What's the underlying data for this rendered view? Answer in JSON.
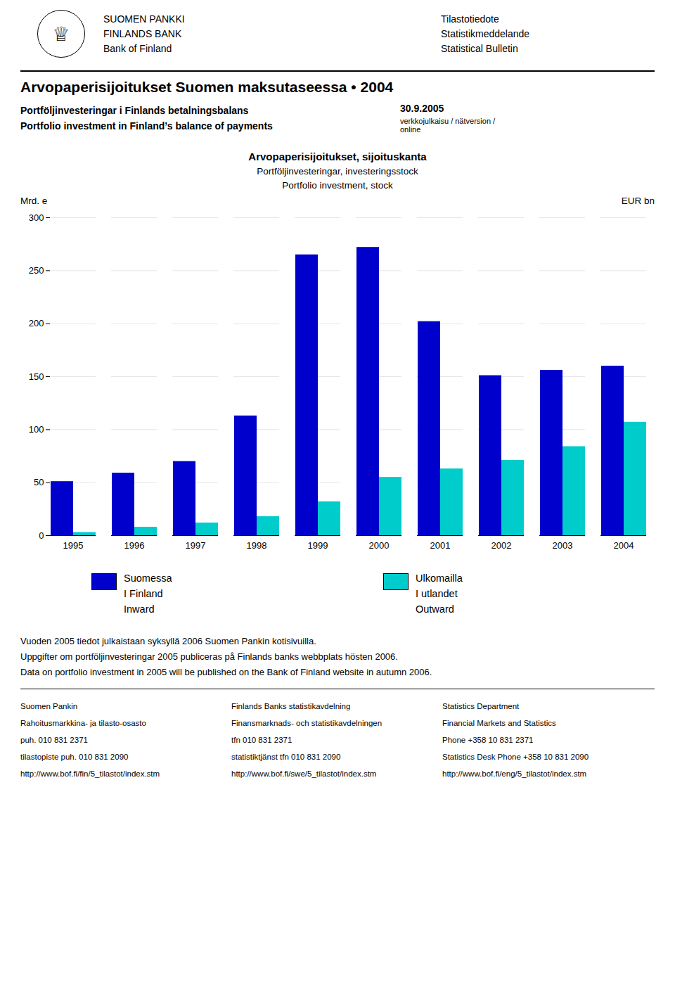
{
  "chart_data": {
    "type": "bar",
    "header": {
      "left": [
        "SUOMEN PANKKI",
        "FINLANDS BANK",
        "Bank of Finland"
      ],
      "right": [
        "Tilastotiedote",
        "Statistikmeddelande",
        "Statistical Bulletin"
      ]
    },
    "annotations": [
      "♕"
    ],
    "title": "Arvopaperisijoitukset Suomen maksutaseessa • 2004",
    "subtitle": [
      "Portföljinvesteringar i Finlands betalningsbalans",
      "Portfolio investment  in Finland’s balance of payments"
    ],
    "date_label": "30.9.2005",
    "date_sublabel": "verkkojulkaisu / nätversion /\nonline",
    "chart_title": [
      "Arvopaperisijoitukset, sijoituskanta",
      "Portföljinvesteringar, investeringsstock",
      "Portfolio investment, stock"
    ],
    "ylabel": "Mrd. e",
    "ylabel_right": "EUR bn",
    "categories": [
      1995,
      1996,
      1997,
      1998,
      1999,
      2000,
      2001,
      2002,
      2003,
      2004
    ],
    "series": [
      {
        "name": "Suomessa\nI Finland\nInward",
        "color": "#0000CC",
        "values": [
          51,
          59,
          70,
          113,
          265,
          272,
          202,
          151,
          156,
          160
        ]
      },
      {
        "name": "Ulkomailla\nI utlandet\nOutward",
        "color": "#00CCCC",
        "values": [
          3,
          8,
          12,
          18,
          32,
          55,
          63,
          71,
          84,
          107
        ]
      }
    ],
    "ylim": [
      0,
      300
    ],
    "yticks": [
      0,
      50,
      100,
      150,
      200,
      250,
      300
    ],
    "grid": true,
    "footer": [
      "Vuoden 2005 tiedot julkaistaan syksyllä 2006 Suomen Pankin kotisivuilla.",
      "Uppgifter om portföljinvesteringar 2005 publiceras på Finlands banks webbplats hösten 2006.",
      "Data on portfolio investment in 2005 will be published on the Bank of Finland website in autumn 2006."
    ],
    "contacts": [
      [
        "Suomen Pankin",
        "Rahoitusmarkkina- ja tilasto-osasto",
        "puh. 010 831 2371",
        "tilastopiste puh. 010 831 2090",
        "http://www.bof.fi/fin/5_tilastot/index.stm"
      ],
      [
        "Finlands Banks statistikavdelning",
        "Finansmarknads- och statistikavdelningen",
        "tfn 010 831 2371",
        "statistiktjänst tfn 010 831 2090",
        "http://www.bof.fi/swe/5_tilastot/index.stm"
      ],
      [
        "Statistics Department",
        "Financial Markets and Statistics",
        "Phone +358 10 831 2371",
        "Statistics Desk Phone +358 10 831 2090",
        "http://www.bof.fi/eng/5_tilastot/index.stm"
      ]
    ]
  }
}
